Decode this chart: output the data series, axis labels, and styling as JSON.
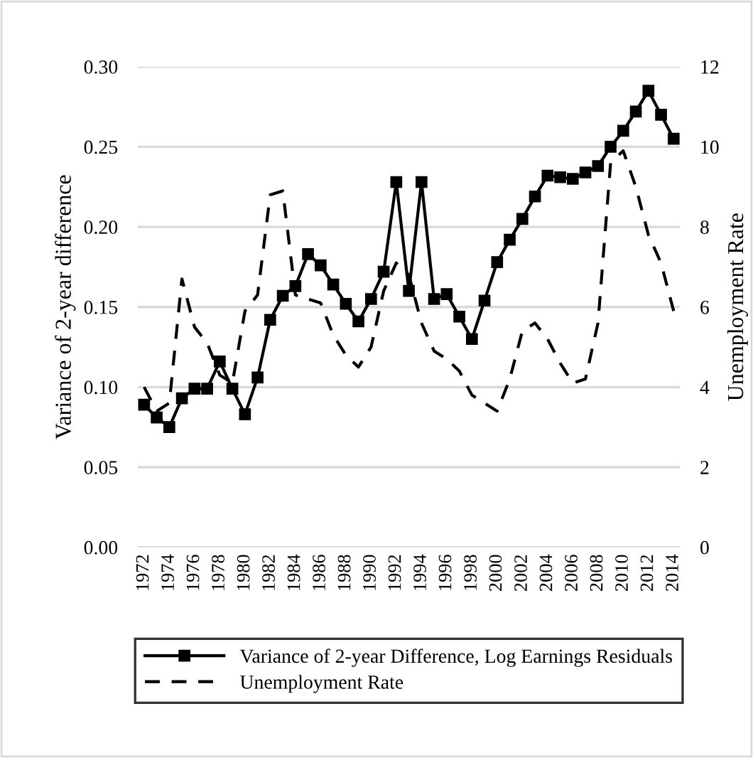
{
  "chart_data": {
    "type": "line",
    "categories": [
      "1972",
      null,
      "1974",
      null,
      "1976",
      null,
      "1978",
      null,
      "1980",
      null,
      "1982",
      null,
      "1984",
      null,
      "1986",
      null,
      "1988",
      null,
      "1990",
      null,
      "1992",
      null,
      "1994",
      null,
      "1996",
      null,
      "1998",
      null,
      "2000",
      null,
      "2002",
      null,
      "2004",
      null,
      "2006",
      null,
      "2008",
      null,
      "2010",
      null,
      "2012",
      null,
      "2014"
    ],
    "ylabel": "Variance of 2-year difference",
    "y2label": "Unemployment Rate",
    "series": [
      {
        "name": "Variance of 2-year Difference, Log Earnings Residuals",
        "color": "#000000",
        "marker": "square",
        "line_style": "solid",
        "values": [
          0.089,
          0.081,
          0.075,
          0.093,
          0.099,
          0.099,
          0.116,
          0.099,
          0.083,
          0.106,
          0.142,
          0.157,
          0.163,
          0.183,
          0.176,
          0.164,
          0.152,
          0.141,
          0.155,
          0.172,
          0.228,
          0.16,
          0.228,
          0.155,
          0.158,
          0.144,
          0.13,
          0.154,
          0.178,
          0.192,
          0.205,
          0.219,
          0.232,
          0.231,
          0.23,
          0.234,
          0.238,
          0.25,
          0.26,
          0.272,
          0.285,
          0.27,
          0.255
        ]
      },
      {
        "name": "Unemployment Rate",
        "color": "#000000",
        "marker": "none",
        "line_style": "dashed",
        "axis": "y2",
        "values": [
          4.0,
          3.4,
          3.6,
          6.7,
          5.5,
          5.1,
          4.3,
          4.1,
          5.9,
          6.3,
          8.8,
          8.9,
          6.3,
          6.2,
          6.1,
          5.3,
          4.8,
          4.5,
          5.0,
          6.4,
          7.1,
          6.8,
          5.6,
          4.9,
          4.7,
          4.4,
          3.8,
          3.6,
          3.4,
          4.2,
          5.4,
          5.6,
          5.2,
          4.6,
          4.1,
          4.2,
          5.6,
          9.6,
          9.9,
          9.0,
          7.8,
          7.1,
          5.9
        ]
      }
    ],
    "ylim": [
      0,
      0.3
    ],
    "yticks": [
      {
        "value": 0,
        "label": "0.00"
      },
      {
        "value": 0.05,
        "label": "0.05"
      },
      {
        "value": 0.1,
        "label": "0.10"
      },
      {
        "value": 0.15,
        "label": "0.15"
      },
      {
        "value": 0.2,
        "label": "0.20"
      },
      {
        "value": 0.25,
        "label": "0.25"
      },
      {
        "value": 0.3,
        "label": "0.30"
      }
    ],
    "y2lim": [
      0,
      12
    ],
    "y2ticks": [
      0,
      2,
      4,
      6,
      8,
      10,
      12
    ],
    "grid": "y",
    "legend": "bottom"
  }
}
